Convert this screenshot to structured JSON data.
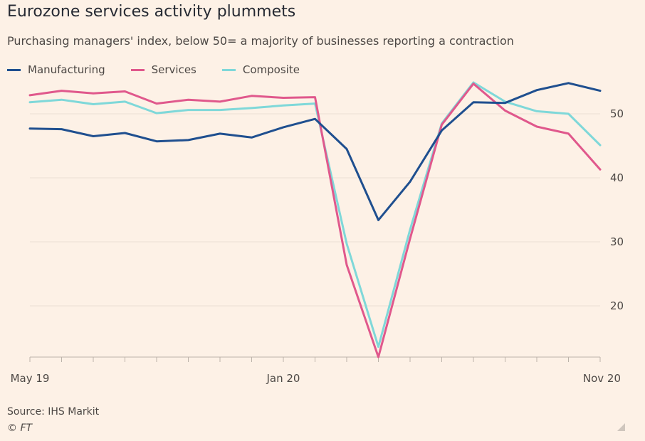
{
  "header": {
    "title": "Eurozone services activity plummets",
    "subtitle": "Purchasing managers' index, below 50= a majority of businesses reporting a contraction"
  },
  "footer": {
    "source": "Source: IHS Markit",
    "credit": "© FT"
  },
  "chart_data": {
    "type": "line",
    "title": "Eurozone services activity plummets",
    "subtitle": "Purchasing managers' index, below 50= a majority of businesses reporting a contraction",
    "x": [
      "May 19",
      "Jun 19",
      "Jul 19",
      "Aug 19",
      "Sep 19",
      "Oct 19",
      "Nov 19",
      "Dec 19",
      "Jan 20",
      "Feb 20",
      "Mar 20",
      "Apr 20",
      "May 20",
      "Jun 20",
      "Jul 20",
      "Aug 20",
      "Sep 20",
      "Oct 20",
      "Nov 20"
    ],
    "x_tick_labels": [
      {
        "index": 0,
        "label": "May 19"
      },
      {
        "index": 8,
        "label": "Jan 20"
      },
      {
        "index": 18,
        "label": "Nov 20"
      }
    ],
    "ylim": [
      12,
      57
    ],
    "y_ticks": [
      20,
      30,
      40,
      50
    ],
    "y_axis_side": "right",
    "grid": true,
    "legend_position": "top-left",
    "series": [
      {
        "name": "Manufacturing",
        "color": "#1f4f8f",
        "values": [
          47.7,
          47.6,
          46.5,
          47.0,
          45.7,
          45.9,
          46.9,
          46.3,
          47.9,
          49.2,
          44.5,
          33.4,
          39.4,
          47.4,
          51.8,
          51.7,
          53.7,
          54.8,
          53.6
        ]
      },
      {
        "name": "Services",
        "color": "#e0588c",
        "values": [
          52.9,
          53.6,
          53.2,
          53.5,
          51.6,
          52.2,
          51.9,
          52.8,
          52.5,
          52.6,
          26.4,
          12.0,
          30.5,
          48.3,
          54.7,
          50.5,
          48.0,
          46.9,
          41.3
        ]
      },
      {
        "name": "Composite",
        "color": "#7fd8d9",
        "values": [
          51.8,
          52.2,
          51.5,
          51.9,
          50.1,
          50.6,
          50.6,
          50.9,
          51.3,
          51.6,
          29.7,
          13.6,
          31.9,
          48.5,
          54.9,
          51.9,
          50.4,
          50.0,
          45.1
        ]
      }
    ]
  }
}
